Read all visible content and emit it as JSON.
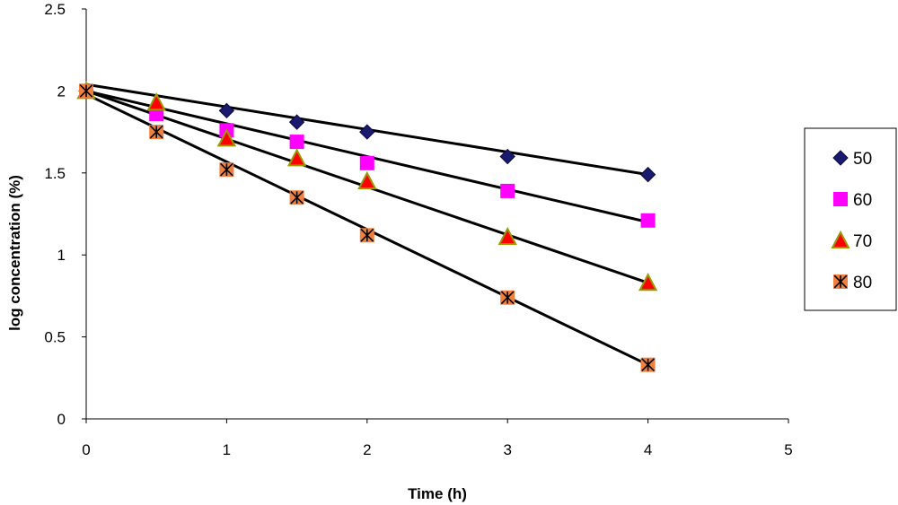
{
  "chart_data": {
    "type": "scatter",
    "title": "",
    "xlabel": "Time (h)",
    "ylabel": "log concentration (%)",
    "xlim": [
      0,
      5
    ],
    "ylim": [
      0,
      2.5
    ],
    "x_ticks": [
      "0",
      "1",
      "2",
      "3",
      "4",
      "5"
    ],
    "y_ticks": [
      "0",
      "0.5",
      "1",
      "1.5",
      "2",
      "2.5"
    ],
    "grid": false,
    "legend_position": "right",
    "trendlines": true,
    "series": [
      {
        "name": "50",
        "marker": "diamond",
        "color": "#1a1a6e",
        "x": [
          0,
          1,
          1.5,
          2,
          3,
          4
        ],
        "y": [
          2.0,
          1.88,
          1.81,
          1.75,
          1.6,
          1.49
        ],
        "fit": [
          2.04,
          1.49
        ]
      },
      {
        "name": "60",
        "marker": "square",
        "color": "#ff00ff",
        "x": [
          0,
          0.5,
          1,
          1.5,
          2,
          3,
          4
        ],
        "y": [
          2.0,
          1.86,
          1.76,
          1.69,
          1.56,
          1.39,
          1.21
        ],
        "fit": [
          2.0,
          1.2
        ]
      },
      {
        "name": "70",
        "marker": "triangle",
        "color": "#ff0000",
        "stroke": "#999900",
        "x": [
          0,
          0.5,
          1,
          1.5,
          2,
          3,
          4
        ],
        "y": [
          2.0,
          1.93,
          1.71,
          1.59,
          1.45,
          1.11,
          0.83
        ],
        "fit": [
          2.0,
          0.83
        ]
      },
      {
        "name": "80",
        "marker": "asterisk-square",
        "color": "#f08040",
        "x": [
          0,
          0.5,
          1,
          1.5,
          2,
          3,
          4
        ],
        "y": [
          2.0,
          1.75,
          1.52,
          1.35,
          1.12,
          0.74,
          0.33
        ],
        "fit": [
          1.98,
          0.33
        ]
      }
    ]
  }
}
